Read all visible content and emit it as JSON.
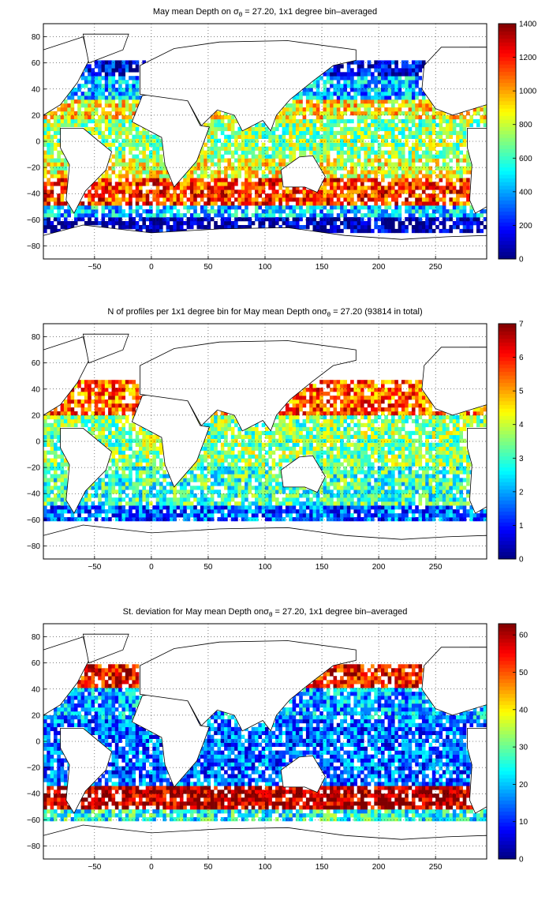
{
  "chart_data": [
    {
      "type": "heatmap",
      "title": "May mean Depth on σθ = 27.20, 1x1 degree bin–averaged",
      "title_parts": {
        "pre": "May mean Depth on ",
        "sym": "σ",
        "sub": "θ",
        "post": " = 27.20, 1x1 degree bin–averaged"
      },
      "xlim": [
        -95,
        295
      ],
      "ylim": [
        -90,
        90
      ],
      "x_ticks": [
        -50,
        0,
        50,
        100,
        150,
        200,
        250
      ],
      "y_ticks": [
        -80,
        -60,
        -40,
        -20,
        0,
        20,
        40,
        60,
        80
      ],
      "grid": true,
      "colorbar": {
        "min": 0,
        "max": 1400,
        "ticks": [
          0,
          200,
          400,
          600,
          800,
          1000,
          1200,
          1400
        ],
        "colormap": "jet"
      },
      "zones": [
        {
          "lat": [
            50,
            60
          ],
          "value": 150
        },
        {
          "lat": [
            30,
            50
          ],
          "value": 420
        },
        {
          "lat": [
            15,
            30
          ],
          "value": 900
        },
        {
          "lat": [
            -15,
            15
          ],
          "value": 720
        },
        {
          "lat": [
            -30,
            -15
          ],
          "value": 850
        },
        {
          "lat": [
            -50,
            -30
          ],
          "value": 1150
        },
        {
          "lat": [
            -58,
            -50
          ],
          "value": 450
        },
        {
          "lat": [
            -70,
            -58
          ],
          "value": 60
        }
      ]
    },
    {
      "type": "heatmap",
      "title": "N of profiles per 1x1 degree bin for May mean Depth on σθ = 27.20 (93814 in total)",
      "title_parts": {
        "pre": "N of profiles per 1x1 degree bin for May mean Depth on",
        "sym": "σ",
        "sub": "θ",
        "post": " = 27.20 (93814 in total)"
      },
      "xlim": [
        -95,
        295
      ],
      "ylim": [
        -90,
        90
      ],
      "x_ticks": [
        -50,
        0,
        50,
        100,
        150,
        200,
        250
      ],
      "y_ticks": [
        -80,
        -60,
        -40,
        -20,
        0,
        20,
        40,
        60,
        80
      ],
      "grid": true,
      "total_profiles": 93814,
      "colorbar": {
        "min": 0,
        "max": 7,
        "ticks": [
          0,
          1,
          2,
          3,
          4,
          5,
          6,
          7
        ],
        "colormap": "jet"
      },
      "zones": [
        {
          "lat": [
            20,
            45
          ],
          "value": 5.5
        },
        {
          "lat": [
            -20,
            20
          ],
          "value": 3.5
        },
        {
          "lat": [
            -50,
            -20
          ],
          "value": 3
        },
        {
          "lat": [
            -62,
            -50
          ],
          "value": 1.5
        }
      ]
    },
    {
      "type": "heatmap",
      "title": "St. deviation for May mean Depth on σθ = 27.20, 1x1 degree bin–averaged",
      "title_parts": {
        "pre": "St. deviation for May mean Depth on",
        "sym": "σ",
        "sub": "θ",
        "post": " = 27.20, 1x1 degree bin–averaged"
      },
      "xlim": [
        -95,
        295
      ],
      "ylim": [
        -90,
        90
      ],
      "x_ticks": [
        -50,
        0,
        50,
        100,
        150,
        200,
        250
      ],
      "y_ticks": [
        -80,
        -60,
        -40,
        -20,
        0,
        20,
        40,
        60,
        80
      ],
      "grid": true,
      "colorbar": {
        "min": 0,
        "max": 63,
        "ticks": [
          0,
          10,
          20,
          30,
          40,
          50,
          60
        ],
        "colormap": "jet"
      },
      "zones": [
        {
          "lat": [
            40,
            58
          ],
          "value": 55
        },
        {
          "lat": [
            15,
            40
          ],
          "value": 18
        },
        {
          "lat": [
            -35,
            15
          ],
          "value": 14
        },
        {
          "lat": [
            -52,
            -35
          ],
          "value": 60
        },
        {
          "lat": [
            -62,
            -52
          ],
          "value": 25
        }
      ]
    }
  ]
}
